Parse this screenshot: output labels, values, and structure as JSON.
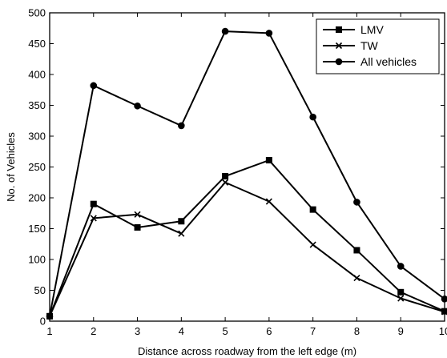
{
  "chart_data": {
    "type": "line",
    "title": "",
    "xlabel": "Distance across roadway from the left edge (m)",
    "ylabel": "No. of Vehicles",
    "xlim": [
      1,
      10
    ],
    "ylim": [
      0,
      500
    ],
    "xticks": [
      1,
      2,
      3,
      4,
      5,
      6,
      7,
      8,
      9,
      10
    ],
    "yticks": [
      0,
      50,
      100,
      150,
      200,
      250,
      300,
      350,
      400,
      450,
      500
    ],
    "grid": false,
    "legend_position": "top-right",
    "x": [
      1,
      2,
      3,
      4,
      5,
      6,
      7,
      8,
      9,
      10
    ],
    "series": [
      {
        "name": "LMV",
        "marker": "square",
        "color": "#000000",
        "values": [
          8,
          190,
          152,
          162,
          235,
          261,
          181,
          115,
          47,
          16
        ]
      },
      {
        "name": "TW",
        "marker": "x",
        "color": "#000000",
        "values": [
          8,
          167,
          173,
          142,
          225,
          194,
          124,
          70,
          37,
          15
        ]
      },
      {
        "name": "All vehicles",
        "marker": "circle",
        "color": "#000000",
        "values": [
          8,
          382,
          349,
          317,
          470,
          467,
          331,
          193,
          89,
          36
        ]
      }
    ]
  }
}
